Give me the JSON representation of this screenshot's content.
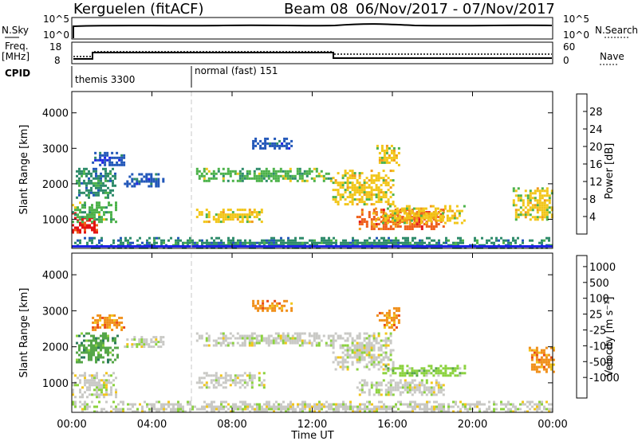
{
  "header": {
    "station": "Kerguelen (fitACF)",
    "beam_label": "Beam 08",
    "date_range": "06/Nov/2017 - 07/Nov/2017"
  },
  "panels": {
    "nsky": {
      "label": "N.Sky",
      "right_label": "N.Search",
      "left_ticks": [
        "10^5",
        "10^0"
      ],
      "right_ticks": [
        "10^5",
        "10^0"
      ]
    },
    "freq": {
      "label_line1": "Freq.",
      "label_line2": "[MHz]",
      "right_label": "Nave",
      "left_ticks": [
        "18",
        "8"
      ],
      "right_ticks": [
        "60",
        "0"
      ]
    },
    "cpid": {
      "label": "CPID",
      "modes": [
        {
          "text": "themis 3300"
        },
        {
          "text": "normal (fast) 151"
        }
      ]
    }
  },
  "colors": {
    "data_line": "#000000",
    "power_scale": [
      "#1e22e6",
      "#2257b9",
      "#2d8b6a",
      "#4cb24a",
      "#f2c619",
      "#f09a1a",
      "#ef5e18",
      "#e41414"
    ],
    "velocity_scale": [
      "#1c35b9",
      "#2c7a5c",
      "#55a648",
      "#8bd23e",
      "#c9c9c5",
      "#f2c619",
      "#f08f1a",
      "#ea4a16",
      "#e01010"
    ]
  },
  "chart_data": [
    {
      "type": "heatmap",
      "name": "power",
      "ylabel": "Slant Range [km]",
      "ylim": [
        180,
        4600
      ],
      "yticks": [
        1000,
        2000,
        3000,
        4000
      ],
      "xlim": [
        0,
        24
      ],
      "x_unit": "hours UT",
      "colorbar": {
        "label": "Power [dB]",
        "ticks": [
          "4",
          "8",
          "12",
          "16",
          "20",
          "24",
          "28"
        ]
      },
      "regions": [
        {
          "t": [
            0.0,
            1.3
          ],
          "r": [
            600,
            1200
          ],
          "level": 7
        },
        {
          "t": [
            0.0,
            2.2
          ],
          "r": [
            900,
            1500
          ],
          "level": 3
        },
        {
          "t": [
            0.2,
            2.2
          ],
          "r": [
            1600,
            2450
          ],
          "level": 2
        },
        {
          "t": [
            1.0,
            2.6
          ],
          "r": [
            2500,
            2900
          ],
          "level": 1
        },
        {
          "t": [
            2.6,
            4.6
          ],
          "r": [
            1950,
            2300
          ],
          "level": 1
        },
        {
          "t": [
            6.2,
            9.6
          ],
          "r": [
            900,
            1300
          ],
          "level": 4
        },
        {
          "t": [
            6.2,
            13.0
          ],
          "r": [
            2050,
            2450
          ],
          "level": 3
        },
        {
          "t": [
            9.0,
            11.0
          ],
          "r": [
            3000,
            3300
          ],
          "level": 1
        },
        {
          "t": [
            13.0,
            16.0
          ],
          "r": [
            1400,
            2400
          ],
          "level": 4
        },
        {
          "t": [
            14.2,
            18.6
          ],
          "r": [
            750,
            1300
          ],
          "level": 6
        },
        {
          "t": [
            15.0,
            19.6
          ],
          "r": [
            900,
            1400
          ],
          "level": 4
        },
        {
          "t": [
            15.2,
            16.3
          ],
          "r": [
            2500,
            3100
          ],
          "level": 4
        },
        {
          "t": [
            22.0,
            24.0
          ],
          "r": [
            1000,
            1900
          ],
          "level": 4
        },
        {
          "t": [
            0.0,
            24.0
          ],
          "r": [
            190,
            500
          ],
          "level": 2
        }
      ],
      "scan_gaps": [
        13.0
      ]
    },
    {
      "type": "heatmap",
      "name": "velocity",
      "ylabel": "Slant Range [km]",
      "ylim": [
        180,
        4600
      ],
      "yticks": [
        1000,
        2000,
        3000,
        4000
      ],
      "xlim": [
        0,
        24
      ],
      "x_unit": "hours UT",
      "xlabel": "Time UT",
      "xtick_labels": [
        "00:00",
        "04:00",
        "08:00",
        "12:00",
        "16:00",
        "20:00",
        "00:00"
      ],
      "colorbar": {
        "label": "Velocity [m s⁻¹]",
        "ticks": [
          "1000",
          "500",
          "100",
          "25",
          "-25",
          "-100",
          "-500",
          "-1000"
        ]
      },
      "regions": [
        {
          "t": [
            0.0,
            2.2
          ],
          "r": [
            600,
            1300
          ],
          "level": 4
        },
        {
          "t": [
            0.2,
            2.3
          ],
          "r": [
            1600,
            2400
          ],
          "level": 2
        },
        {
          "t": [
            1.0,
            2.6
          ],
          "r": [
            2500,
            2900
          ],
          "level": 6
        },
        {
          "t": [
            2.6,
            4.6
          ],
          "r": [
            2000,
            2300
          ],
          "level": 4
        },
        {
          "t": [
            6.2,
            9.6
          ],
          "r": [
            900,
            1300
          ],
          "level": 4
        },
        {
          "t": [
            6.2,
            13.0
          ],
          "r": [
            2050,
            2400
          ],
          "level": 4
        },
        {
          "t": [
            9.0,
            11.0
          ],
          "r": [
            3000,
            3300
          ],
          "level": 6
        },
        {
          "t": [
            13.0,
            16.0
          ],
          "r": [
            1400,
            2400
          ],
          "level": 4
        },
        {
          "t": [
            15.5,
            19.6
          ],
          "r": [
            1200,
            1500
          ],
          "level": 3
        },
        {
          "t": [
            14.2,
            18.6
          ],
          "r": [
            700,
            1100
          ],
          "level": 4
        },
        {
          "t": [
            15.2,
            16.3
          ],
          "r": [
            2500,
            3100
          ],
          "level": 6
        },
        {
          "t": [
            22.8,
            24.0
          ],
          "r": [
            1300,
            2000
          ],
          "level": 6
        },
        {
          "t": [
            0.0,
            24.0
          ],
          "r": [
            190,
            500
          ],
          "level": 4
        }
      ]
    }
  ]
}
